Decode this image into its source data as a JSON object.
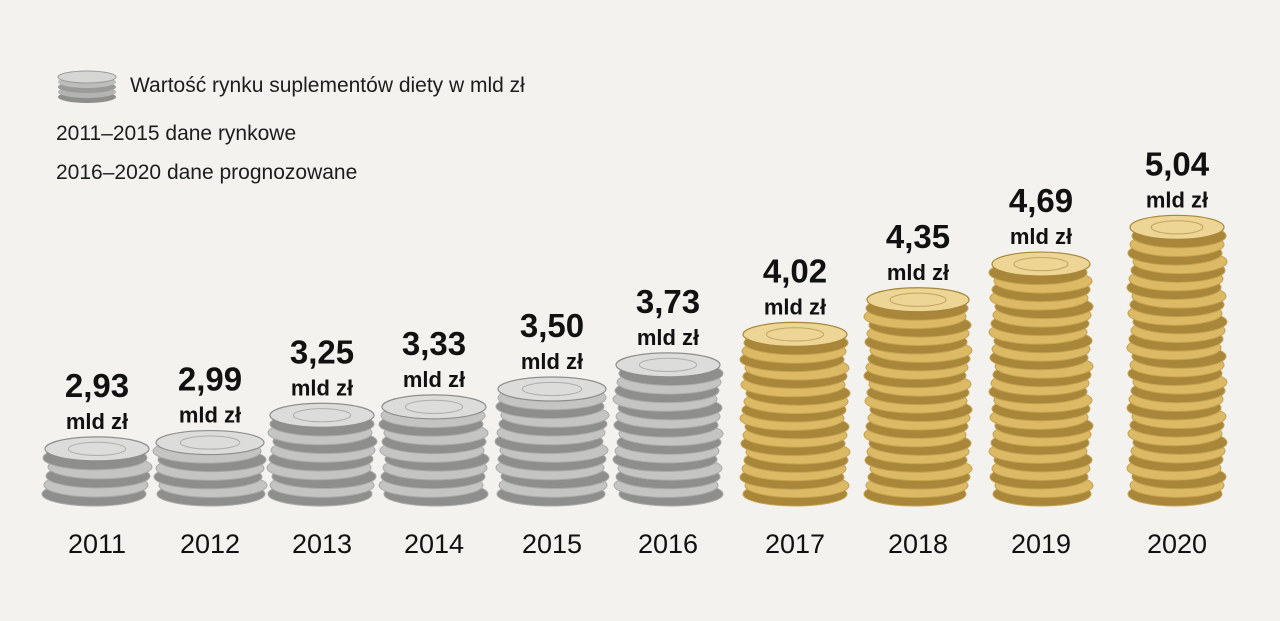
{
  "legend": {
    "label": "Wartość rynku suplementów diety w mld zł",
    "icon": "coin-stack-icon"
  },
  "notes": {
    "market": "2011–2015 dane rynkowe",
    "forecast": "2016–2020 dane prognozowane"
  },
  "colors": {
    "silver": "#c8c8c6",
    "silver_dark": "#8e8e8c",
    "gold": "#e2c476",
    "gold_dark": "#a8863a",
    "text": "#111111"
  },
  "chart_data": {
    "type": "bar",
    "categories": [
      "2011",
      "2012",
      "2013",
      "2014",
      "2015",
      "2016",
      "2017",
      "2018",
      "2019",
      "2020"
    ],
    "values": [
      2.93,
      2.99,
      3.25,
      3.33,
      3.5,
      3.73,
      4.02,
      4.35,
      4.69,
      5.04
    ],
    "value_labels": [
      "2,93",
      "2,99",
      "3,25",
      "3,33",
      "3,50",
      "3,73",
      "4,02",
      "4,35",
      "4,69",
      "5,04"
    ],
    "unit_label": "mld zł",
    "series": [
      {
        "name": "Wartość rynku suplementów diety w mld zł",
        "values": [
          2.93,
          2.99,
          3.25,
          3.33,
          3.5,
          3.73,
          4.02,
          4.35,
          4.69,
          5.04
        ]
      }
    ],
    "bar_style": [
      "silver",
      "silver",
      "silver",
      "silver",
      "silver",
      "silver",
      "gold",
      "gold",
      "gold",
      "gold"
    ],
    "title": "",
    "xlabel": "",
    "ylabel": "",
    "grid": false,
    "legend_position": "top-left"
  }
}
